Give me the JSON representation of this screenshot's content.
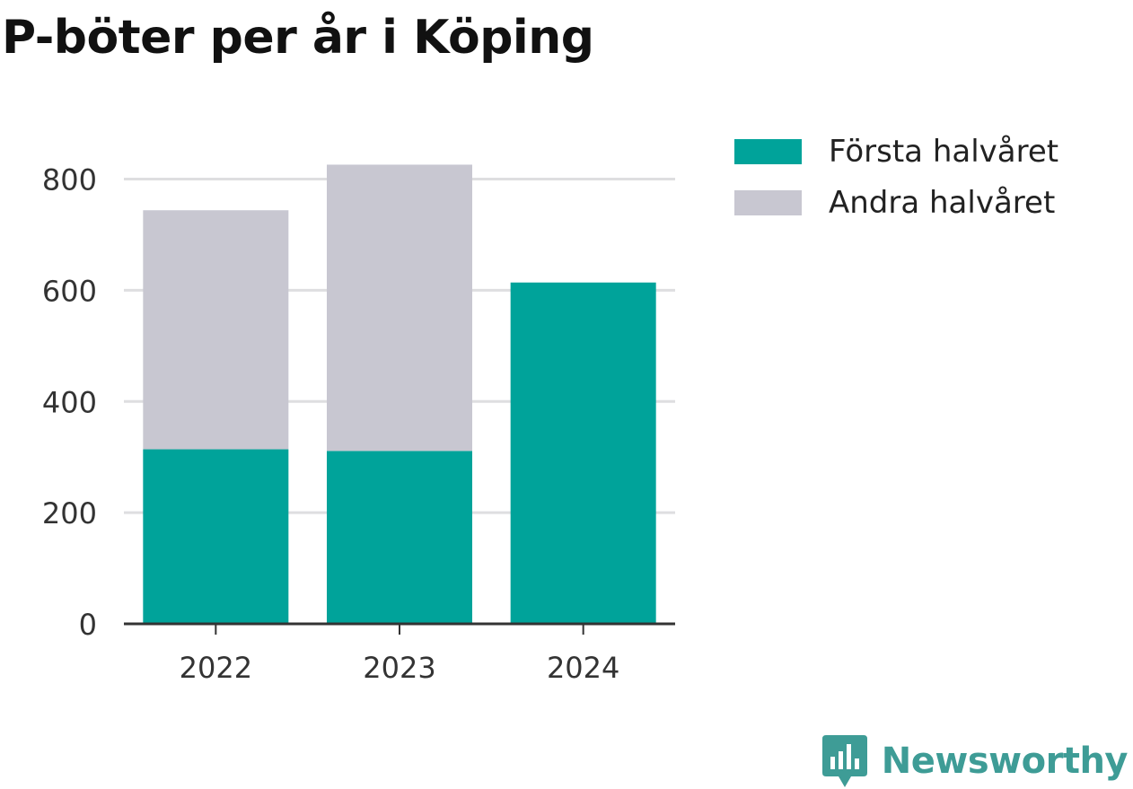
{
  "title": "P-böter per år i Köping",
  "chart_data": {
    "type": "bar",
    "stacked": true,
    "title": "P-böter per år i Köping",
    "xlabel": "",
    "ylabel": "",
    "categories": [
      "2022",
      "2023",
      "2024"
    ],
    "series": [
      {
        "name": "Första halvåret",
        "color": "#00a39a",
        "values": [
          314,
          311,
          614
        ]
      },
      {
        "name": "Andra halvåret",
        "color": "#c8c7d1",
        "values": [
          430,
          515,
          0
        ]
      }
    ],
    "ylim": [
      0,
      880
    ],
    "yticks": [
      "0",
      "200",
      "400",
      "600",
      "800"
    ],
    "grid": true,
    "legend_position": "right"
  },
  "brand": {
    "name": "Newsworthy",
    "icon": "newsworthy-logo-icon"
  }
}
